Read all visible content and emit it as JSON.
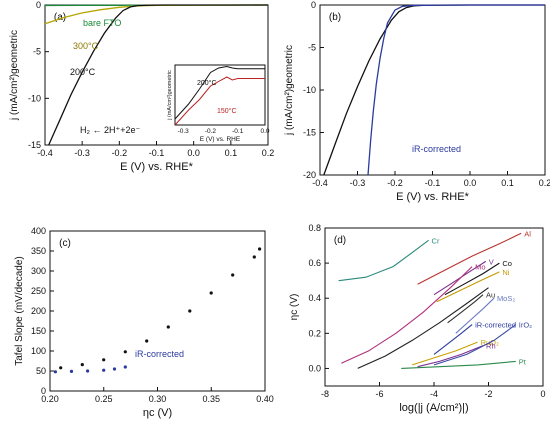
{
  "chart_data": [
    {
      "panel": "(a)",
      "type": "line",
      "xlabel": "E (V) vs. RHE*",
      "ylabel": "j (mA/cm²)geometric",
      "xlim": [
        -0.4,
        0.2
      ],
      "ylim": [
        -15,
        0
      ],
      "xticks": [
        "-0.4",
        "-0.3",
        "-0.2",
        "-0.1",
        "0.0",
        "0.1",
        "0.2"
      ],
      "yticks": [
        "0",
        "-5",
        "-10",
        "-15"
      ],
      "series": [
        {
          "name": "bare FTO",
          "color": "#1a8a3a",
          "x": [
            -0.4,
            -0.3,
            -0.2,
            -0.1,
            0.0,
            0.1,
            0.2
          ],
          "y": [
            -0.05,
            -0.04,
            -0.03,
            -0.02,
            -0.01,
            -0.01,
            0.0
          ]
        },
        {
          "name": "300°C",
          "color": "#b5a600",
          "x": [
            -0.4,
            -0.35,
            -0.3,
            -0.25,
            -0.2,
            -0.15,
            -0.1,
            0.0,
            0.2
          ],
          "y": [
            -2.0,
            -1.35,
            -0.85,
            -0.5,
            -0.25,
            -0.1,
            -0.04,
            -0.01,
            0.0
          ]
        },
        {
          "name": "200°C",
          "color": "#111111",
          "x": [
            -0.39,
            -0.36,
            -0.33,
            -0.3,
            -0.27,
            -0.24,
            -0.21,
            -0.19,
            -0.17,
            -0.15,
            -0.12,
            -0.08,
            0.0,
            0.2
          ],
          "y": [
            -15,
            -12.3,
            -9.6,
            -7.2,
            -5.0,
            -3.0,
            -1.4,
            -0.6,
            -0.2,
            -0.06,
            -0.02,
            0.0,
            0.0,
            0.0
          ]
        }
      ],
      "annotations": [
        "H₂ ← 2H⁺+2e⁻"
      ],
      "inset": {
        "xlabel": "E (V) vs. RHE",
        "ylabel": "j (mA/cm²)geometric",
        "xticks": [
          "-0.3",
          "-0.2",
          "-0.1",
          "0.0"
        ],
        "labels": [
          "200°C",
          "150°C"
        ]
      }
    },
    {
      "panel": "(b)",
      "type": "line",
      "xlabel": "E (V) vs. RHE*",
      "ylabel": "j (mA/cm²)geometric",
      "xlim": [
        -0.4,
        0.2
      ],
      "ylim": [
        -20,
        0
      ],
      "xticks": [
        "-0.4",
        "-0.3",
        "-0.2",
        "-0.1",
        "0.0",
        "0.1",
        "0.2"
      ],
      "yticks": [
        "0",
        "-5",
        "-10",
        "-15",
        "-20"
      ],
      "series": [
        {
          "name": "",
          "color": "#111111",
          "x": [
            -0.39,
            -0.36,
            -0.33,
            -0.3,
            -0.27,
            -0.24,
            -0.21,
            -0.19,
            -0.17,
            -0.15,
            -0.12,
            0.0,
            0.2
          ],
          "y": [
            -20,
            -16.4,
            -12.8,
            -9.6,
            -6.6,
            -4.0,
            -1.8,
            -0.8,
            -0.3,
            -0.1,
            -0.02,
            0.0,
            0.0
          ]
        },
        {
          "name": "iR-corrected",
          "color": "#2b3aa0",
          "x": [
            -0.272,
            -0.265,
            -0.258,
            -0.25,
            -0.24,
            -0.23,
            -0.22,
            -0.2,
            -0.18,
            -0.15,
            0.0,
            0.2
          ],
          "y": [
            -20,
            -16,
            -12.5,
            -9.3,
            -6.3,
            -3.9,
            -2.1,
            -0.6,
            -0.15,
            -0.03,
            0.0,
            0.0
          ]
        }
      ]
    },
    {
      "panel": "(c)",
      "type": "scatter",
      "xlabel": "ηc (V)",
      "ylabel": "Tafel Slope (mV/decade)",
      "xlim": [
        0.2,
        0.4
      ],
      "ylim": [
        0,
        400
      ],
      "xticks": [
        "0.20",
        "0.25",
        "0.30",
        "0.35",
        "0.40"
      ],
      "yticks": [
        "0",
        "50",
        "100",
        "150",
        "200",
        "250",
        "300",
        "350",
        "400"
      ],
      "series": [
        {
          "name": "",
          "color": "#111111",
          "x": [
            0.21,
            0.23,
            0.25,
            0.27,
            0.29,
            0.31,
            0.33,
            0.35,
            0.37,
            0.39,
            0.395
          ],
          "y": [
            58,
            66,
            78,
            98,
            125,
            160,
            200,
            245,
            290,
            335,
            355
          ]
        },
        {
          "name": "iR-corrected",
          "color": "#2b3aa0",
          "x": [
            0.205,
            0.22,
            0.235,
            0.25,
            0.26,
            0.27
          ],
          "y": [
            48,
            49,
            50,
            52,
            55,
            60
          ]
        }
      ]
    },
    {
      "panel": "(d)",
      "type": "line",
      "xlabel": "log(|j (A/cm²)|)",
      "ylabel": "ηc (V)",
      "xlim": [
        -8,
        0
      ],
      "ylim": [
        -0.1,
        0.8
      ],
      "xticks": [
        "-8",
        "-6",
        "-4",
        "-2",
        "0"
      ],
      "yticks": [
        "0.0",
        "0.2",
        "0.4",
        "0.6",
        "0.8"
      ],
      "series": [
        {
          "name": "Cr",
          "color": "#2a8a7a",
          "x": [
            -7.5,
            -6.5,
            -5.5,
            -4.8,
            -4.2
          ],
          "y": [
            0.5,
            0.52,
            0.58,
            0.66,
            0.73
          ]
        },
        {
          "name": "Al",
          "color": "#b8342c",
          "x": [
            -4.6,
            -3.6,
            -2.6,
            -1.6,
            -0.8
          ],
          "y": [
            0.48,
            0.56,
            0.64,
            0.71,
            0.77
          ]
        },
        {
          "name": "V",
          "color": "#7a2f8f",
          "x": [
            -4.0,
            -3.3,
            -2.6,
            -2.1
          ],
          "y": [
            0.42,
            0.49,
            0.56,
            0.61
          ]
        },
        {
          "name": "Co",
          "color": "#111111",
          "x": [
            -3.6,
            -2.9,
            -2.2,
            -1.6
          ],
          "y": [
            0.42,
            0.48,
            0.54,
            0.6
          ]
        },
        {
          "name": "Ni",
          "color": "#c49a00",
          "x": [
            -3.9,
            -3.1,
            -2.3,
            -1.6
          ],
          "y": [
            0.38,
            0.44,
            0.5,
            0.55
          ]
        },
        {
          "name": "Au",
          "color": "#333333",
          "x": [
            -3.5,
            -3.0,
            -2.5,
            -2.2
          ],
          "y": [
            0.26,
            0.32,
            0.38,
            0.42
          ]
        },
        {
          "name": "MoS₂",
          "color": "#6a7ac0",
          "x": [
            -3.2,
            -2.7,
            -2.2,
            -1.8
          ],
          "y": [
            0.2,
            0.27,
            0.34,
            0.4
          ]
        },
        {
          "name": "iR-corrected",
          "color": "#2b3aa0",
          "x": [
            -4.0,
            -3.5,
            -3.0,
            -2.6
          ],
          "y": [
            0.08,
            0.14,
            0.2,
            0.25
          ]
        },
        {
          "name": "Mo",
          "color": "#b0307a",
          "x": [
            -7.4,
            -6.4,
            -5.4,
            -4.4,
            -3.4,
            -2.6
          ],
          "y": [
            0.03,
            0.1,
            0.2,
            0.32,
            0.46,
            0.58
          ]
        },
        {
          "name": "RuO₂",
          "color": "#c8a000",
          "x": [
            -4.8,
            -4.0,
            -3.2,
            -2.4
          ],
          "y": [
            0.02,
            0.06,
            0.1,
            0.15
          ]
        },
        {
          "name": "Rh",
          "color": "#7a2f8f",
          "x": [
            -4.6,
            -3.8,
            -3.0,
            -2.2
          ],
          "y": [
            0.01,
            0.04,
            0.08,
            0.13
          ]
        },
        {
          "name": "IrO₂",
          "color": "#3a4aa8",
          "x": [
            -4.0,
            -2.8,
            -1.8,
            -1.0
          ],
          "y": [
            0.02,
            0.08,
            0.16,
            0.25
          ]
        },
        {
          "name": "Pt",
          "color": "#2a8a4a",
          "x": [
            -5.2,
            -3.8,
            -2.4,
            -1.0
          ],
          "y": [
            0.0,
            0.01,
            0.02,
            0.04
          ]
        },
        {
          "name": "",
          "color": "#222222",
          "x": [
            -6.8,
            -5.8,
            -4.8,
            -3.8,
            -2.8,
            -2.0
          ],
          "y": [
            0.0,
            0.07,
            0.16,
            0.26,
            0.37,
            0.46
          ]
        }
      ]
    }
  ]
}
